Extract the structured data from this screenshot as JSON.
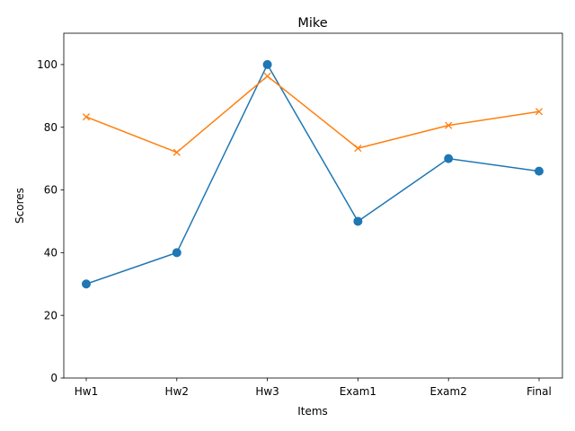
{
  "chart_data": {
    "type": "line",
    "title": "Mike",
    "xlabel": "Items",
    "ylabel": "Scores",
    "categories": [
      "Hw1",
      "Hw2",
      "Hw3",
      "Exam1",
      "Exam2",
      "Final"
    ],
    "ylim": [
      0,
      110
    ],
    "yticks": [
      0,
      20,
      40,
      60,
      80,
      100
    ],
    "grid": false,
    "series": [
      {
        "marker": "circle",
        "color": "#1f77b4",
        "values": [
          30,
          40,
          100,
          50,
          70,
          66
        ]
      },
      {
        "marker": "x",
        "color": "#ff7f0e",
        "values": [
          83.3,
          72,
          96.3,
          73.3,
          80.6,
          85
        ]
      }
    ]
  }
}
